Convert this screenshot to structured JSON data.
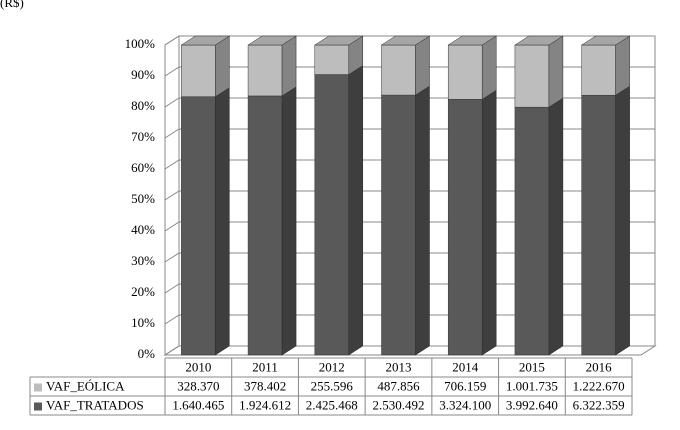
{
  "chart_data": {
    "type": "bar",
    "stacked_percent": true,
    "unit_label": "(R$)",
    "categories": [
      "2010",
      "2011",
      "2012",
      "2013",
      "2014",
      "2015",
      "2016"
    ],
    "series": [
      {
        "name": "VAF_TRATADOS",
        "color": "#595959",
        "values": [
          1640465,
          1924612,
          2425468,
          2530492,
          3324100,
          3992640,
          6322359
        ],
        "value_labels": [
          "1.640.465",
          "1.924.612",
          "2.425.468",
          "2.530.492",
          "3.324.100",
          "3.992.640",
          "6.322.359"
        ]
      },
      {
        "name": "VAF_EÓLICA",
        "color": "#bdbdbd",
        "values": [
          328370,
          378402,
          255596,
          487856,
          706159,
          1001735,
          1222670
        ],
        "value_labels": [
          "328.370",
          "378.402",
          "255.596",
          "487.856",
          "706.159",
          "1.001.735",
          "1.222.670"
        ]
      }
    ],
    "ylim": [
      0,
      100
    ],
    "yticks": [
      {
        "value": 0,
        "label": "0%"
      },
      {
        "value": 10,
        "label": "10%"
      },
      {
        "value": 20,
        "label": "20%"
      },
      {
        "value": 30,
        "label": "30%"
      },
      {
        "value": 40,
        "label": "40%"
      },
      {
        "value": 50,
        "label": "50%"
      },
      {
        "value": 60,
        "label": "60%"
      },
      {
        "value": 70,
        "label": "70%"
      },
      {
        "value": 80,
        "label": "80%"
      },
      {
        "value": 90,
        "label": "90%"
      },
      {
        "value": 100,
        "label": "100%"
      }
    ],
    "grid": true
  }
}
